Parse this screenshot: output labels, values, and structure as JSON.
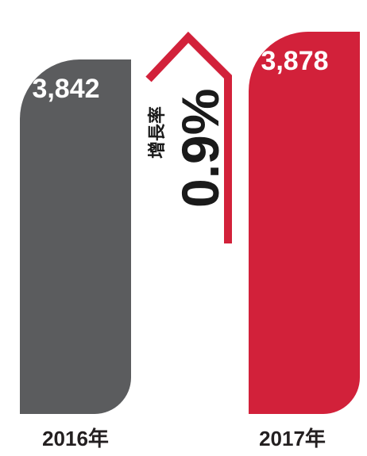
{
  "chart_data": {
    "type": "bar",
    "categories": [
      "2016年",
      "2017年"
    ],
    "values": [
      3842,
      3878
    ],
    "value_labels": [
      "3,842",
      "3,878"
    ],
    "growth": {
      "label": "增長率",
      "value": "0.9%"
    },
    "colors": {
      "bar_2016": "#5b5c5e",
      "bar_2017": "#d2213a",
      "growth_arrow": "#d2213a",
      "value_label": "#ffffff",
      "category_label": "#231f20",
      "growth_text": "#1a1a1a"
    },
    "grid": false,
    "legend": "none"
  }
}
